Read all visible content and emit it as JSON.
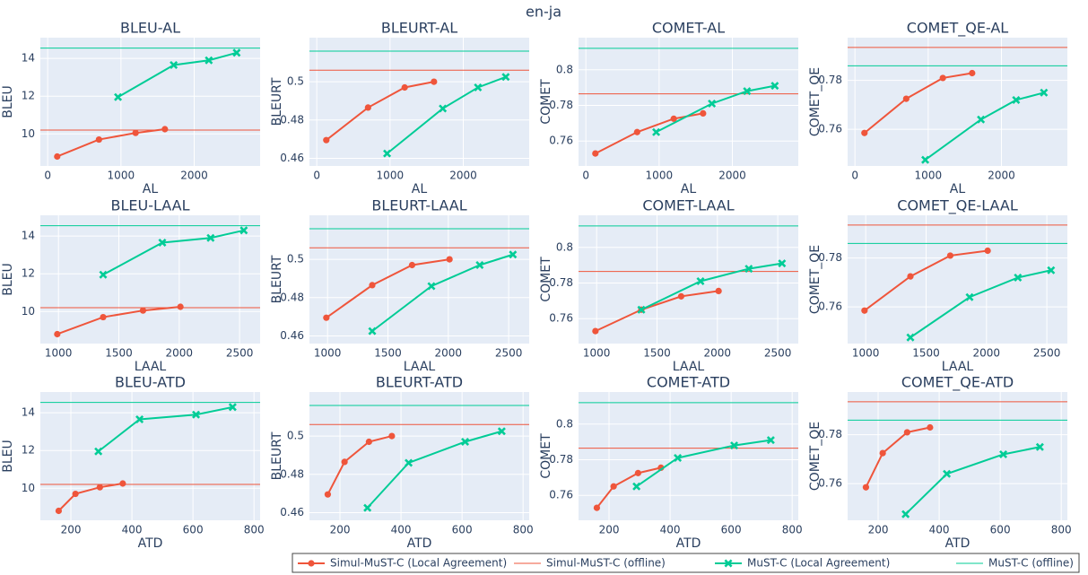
{
  "figure_title": "en-ja",
  "chart_data": [
    {
      "type": "line",
      "title": "BLEU-AL",
      "x_label": "AL",
      "y_label": "BLEU",
      "xlim": [
        -100,
        2900
      ],
      "xticks": [
        0,
        1000,
        2000
      ],
      "ylim": [
        8.3,
        15.1
      ],
      "yticks": [
        10,
        12,
        14
      ],
      "grid": true,
      "series": [
        {
          "name": "Simul-MuST-C (Local Agreement)",
          "color": "#ef553b",
          "marker": "circle",
          "x": [
            130,
            700,
            1200,
            1600
          ],
          "values": [
            8.8,
            9.7,
            10.05,
            10.25
          ]
        },
        {
          "name": "Simul-MuST-C (offline)",
          "color": "#ef553b",
          "value": 10.2
        },
        {
          "name": "MuST-C (Local Agreement)",
          "color": "#00cc96",
          "marker": "x",
          "x": [
            960,
            1720,
            2200,
            2580
          ],
          "values": [
            11.95,
            13.65,
            13.9,
            14.3
          ]
        },
        {
          "name": "MuST-C (offline)",
          "color": "#00cc96",
          "value": 14.55
        }
      ]
    },
    {
      "type": "line",
      "title": "BLEURT-AL",
      "x_label": "AL",
      "y_label": "BLEURT",
      "xlim": [
        -100,
        2900
      ],
      "xticks": [
        0,
        1000,
        2000
      ],
      "ylim": [
        0.456,
        0.523
      ],
      "yticks": [
        0.46,
        0.48,
        0.5
      ],
      "grid": true,
      "series": [
        {
          "name": "Simul-MuST-C (Local Agreement)",
          "color": "#ef553b",
          "marker": "circle",
          "x": [
            130,
            700,
            1200,
            1600
          ],
          "values": [
            0.4695,
            0.4865,
            0.497,
            0.5
          ]
        },
        {
          "name": "Simul-MuST-C (offline)",
          "color": "#ef553b",
          "value": 0.506
        },
        {
          "name": "MuST-C (Local Agreement)",
          "color": "#00cc96",
          "marker": "x",
          "x": [
            960,
            1720,
            2200,
            2580
          ],
          "values": [
            0.4625,
            0.486,
            0.497,
            0.5025
          ]
        },
        {
          "name": "MuST-C (offline)",
          "color": "#00cc96",
          "value": 0.516
        }
      ]
    },
    {
      "type": "line",
      "title": "COMET-AL",
      "x_label": "AL",
      "y_label": "COMET",
      "xlim": [
        -100,
        2900
      ],
      "xticks": [
        0,
        1000,
        2000
      ],
      "ylim": [
        0.746,
        0.818
      ],
      "yticks": [
        0.76,
        0.78,
        0.8
      ],
      "grid": true,
      "series": [
        {
          "name": "Simul-MuST-C (Local Agreement)",
          "color": "#ef553b",
          "marker": "circle",
          "x": [
            130,
            700,
            1200,
            1600
          ],
          "values": [
            0.753,
            0.765,
            0.7725,
            0.7755
          ]
        },
        {
          "name": "Simul-MuST-C (offline)",
          "color": "#ef553b",
          "value": 0.7865
        },
        {
          "name": "MuST-C (Local Agreement)",
          "color": "#00cc96",
          "marker": "x",
          "x": [
            960,
            1720,
            2200,
            2580
          ],
          "values": [
            0.765,
            0.781,
            0.788,
            0.791
          ]
        },
        {
          "name": "MuST-C (offline)",
          "color": "#00cc96",
          "value": 0.812
        }
      ]
    },
    {
      "type": "line",
      "title": "COMET_QE-AL",
      "x_label": "AL",
      "y_label": "COMET_QE",
      "xlim": [
        -100,
        2900
      ],
      "xticks": [
        0,
        1000,
        2000
      ],
      "ylim": [
        0.745,
        0.7975
      ],
      "yticks": [
        0.76,
        0.78
      ],
      "grid": true,
      "series": [
        {
          "name": "Simul-MuST-C (Local Agreement)",
          "color": "#ef553b",
          "marker": "circle",
          "x": [
            130,
            700,
            1200,
            1600
          ],
          "values": [
            0.7585,
            0.7725,
            0.781,
            0.783
          ]
        },
        {
          "name": "Simul-MuST-C (offline)",
          "color": "#ef553b",
          "value": 0.7935
        },
        {
          "name": "MuST-C (Local Agreement)",
          "color": "#00cc96",
          "marker": "x",
          "x": [
            960,
            1720,
            2200,
            2580
          ],
          "values": [
            0.7475,
            0.764,
            0.772,
            0.775
          ]
        },
        {
          "name": "MuST-C (offline)",
          "color": "#00cc96",
          "value": 0.786
        }
      ]
    },
    {
      "type": "line",
      "title": "BLEU-LAAL",
      "x_label": "LAAL",
      "y_label": "BLEU",
      "xlim": [
        850,
        2670
      ],
      "xticks": [
        1000,
        1500,
        2000,
        2500
      ],
      "ylim": [
        8.3,
        15.1
      ],
      "yticks": [
        10,
        12,
        14
      ],
      "grid": true,
      "series": [
        {
          "name": "Simul-MuST-C (Local Agreement)",
          "color": "#ef553b",
          "marker": "circle",
          "x": [
            990,
            1370,
            1700,
            2010
          ],
          "values": [
            8.8,
            9.7,
            10.05,
            10.25
          ]
        },
        {
          "name": "Simul-MuST-C (offline)",
          "color": "#ef553b",
          "value": 10.2
        },
        {
          "name": "MuST-C (Local Agreement)",
          "color": "#00cc96",
          "marker": "x",
          "x": [
            1370,
            1860,
            2260,
            2535
          ],
          "values": [
            11.95,
            13.65,
            13.9,
            14.3
          ]
        },
        {
          "name": "MuST-C (offline)",
          "color": "#00cc96",
          "value": 14.55
        }
      ]
    },
    {
      "type": "line",
      "title": "BLEURT-LAAL",
      "x_label": "LAAL",
      "y_label": "BLEURT",
      "xlim": [
        850,
        2670
      ],
      "xticks": [
        1000,
        1500,
        2000,
        2500
      ],
      "ylim": [
        0.456,
        0.523
      ],
      "yticks": [
        0.46,
        0.48,
        0.5
      ],
      "grid": true,
      "series": [
        {
          "name": "Simul-MuST-C (Local Agreement)",
          "color": "#ef553b",
          "marker": "circle",
          "x": [
            990,
            1370,
            1700,
            2010
          ],
          "values": [
            0.4695,
            0.4865,
            0.497,
            0.5
          ]
        },
        {
          "name": "Simul-MuST-C (offline)",
          "color": "#ef553b",
          "value": 0.506
        },
        {
          "name": "MuST-C (Local Agreement)",
          "color": "#00cc96",
          "marker": "x",
          "x": [
            1370,
            1860,
            2260,
            2535
          ],
          "values": [
            0.4625,
            0.486,
            0.497,
            0.5025
          ]
        },
        {
          "name": "MuST-C (offline)",
          "color": "#00cc96",
          "value": 0.516
        }
      ]
    },
    {
      "type": "line",
      "title": "COMET-LAAL",
      "x_label": "LAAL",
      "y_label": "COMET",
      "xlim": [
        850,
        2670
      ],
      "xticks": [
        1000,
        1500,
        2000,
        2500
      ],
      "ylim": [
        0.746,
        0.818
      ],
      "yticks": [
        0.76,
        0.78,
        0.8
      ],
      "grid": true,
      "series": [
        {
          "name": "Simul-MuST-C (Local Agreement)",
          "color": "#ef553b",
          "marker": "circle",
          "x": [
            990,
            1370,
            1700,
            2010
          ],
          "values": [
            0.753,
            0.765,
            0.7725,
            0.7755
          ]
        },
        {
          "name": "Simul-MuST-C (offline)",
          "color": "#ef553b",
          "value": 0.7865
        },
        {
          "name": "MuST-C (Local Agreement)",
          "color": "#00cc96",
          "marker": "x",
          "x": [
            1370,
            1860,
            2260,
            2535
          ],
          "values": [
            0.765,
            0.781,
            0.788,
            0.791
          ]
        },
        {
          "name": "MuST-C (offline)",
          "color": "#00cc96",
          "value": 0.812
        }
      ]
    },
    {
      "type": "line",
      "title": "COMET_QE-LAAL",
      "x_label": "LAAL",
      "y_label": "COMET_QE",
      "xlim": [
        850,
        2670
      ],
      "xticks": [
        1000,
        1500,
        2000,
        2500
      ],
      "ylim": [
        0.745,
        0.7975
      ],
      "yticks": [
        0.76,
        0.78
      ],
      "grid": true,
      "series": [
        {
          "name": "Simul-MuST-C (Local Agreement)",
          "color": "#ef553b",
          "marker": "circle",
          "x": [
            990,
            1370,
            1700,
            2010
          ],
          "values": [
            0.7585,
            0.7725,
            0.781,
            0.783
          ]
        },
        {
          "name": "Simul-MuST-C (offline)",
          "color": "#ef553b",
          "value": 0.7935
        },
        {
          "name": "MuST-C (Local Agreement)",
          "color": "#00cc96",
          "marker": "x",
          "x": [
            1370,
            1860,
            2260,
            2535
          ],
          "values": [
            0.7475,
            0.764,
            0.772,
            0.775
          ]
        },
        {
          "name": "MuST-C (offline)",
          "color": "#00cc96",
          "value": 0.786
        }
      ]
    },
    {
      "type": "line",
      "title": "BLEU-ATD",
      "x_label": "ATD",
      "y_label": "BLEU",
      "xlim": [
        100,
        820
      ],
      "xticks": [
        200,
        400,
        600,
        800
      ],
      "ylim": [
        8.3,
        15.1
      ],
      "yticks": [
        10,
        12,
        14
      ],
      "grid": true,
      "series": [
        {
          "name": "Simul-MuST-C (Local Agreement)",
          "color": "#ef553b",
          "marker": "circle",
          "x": [
            160,
            215,
            295,
            370
          ],
          "values": [
            8.8,
            9.7,
            10.05,
            10.25
          ]
        },
        {
          "name": "Simul-MuST-C (offline)",
          "color": "#ef553b",
          "value": 10.2
        },
        {
          "name": "MuST-C (Local Agreement)",
          "color": "#00cc96",
          "marker": "x",
          "x": [
            290,
            425,
            610,
            730
          ],
          "values": [
            11.95,
            13.65,
            13.9,
            14.3
          ]
        },
        {
          "name": "MuST-C (offline)",
          "color": "#00cc96",
          "value": 14.55
        }
      ]
    },
    {
      "type": "line",
      "title": "BLEURT-ATD",
      "x_label": "ATD",
      "y_label": "BLEURT",
      "xlim": [
        100,
        820
      ],
      "xticks": [
        200,
        400,
        600,
        800
      ],
      "ylim": [
        0.456,
        0.523
      ],
      "yticks": [
        0.46,
        0.48,
        0.5
      ],
      "grid": true,
      "series": [
        {
          "name": "Simul-MuST-C (Local Agreement)",
          "color": "#ef553b",
          "marker": "circle",
          "x": [
            160,
            215,
            295,
            370
          ],
          "values": [
            0.4695,
            0.4865,
            0.497,
            0.5
          ]
        },
        {
          "name": "Simul-MuST-C (offline)",
          "color": "#ef553b",
          "value": 0.506
        },
        {
          "name": "MuST-C (Local Agreement)",
          "color": "#00cc96",
          "marker": "x",
          "x": [
            290,
            425,
            610,
            730
          ],
          "values": [
            0.4625,
            0.486,
            0.497,
            0.5025
          ]
        },
        {
          "name": "MuST-C (offline)",
          "color": "#00cc96",
          "value": 0.516
        }
      ]
    },
    {
      "type": "line",
      "title": "COMET-ATD",
      "x_label": "ATD",
      "y_label": "COMET",
      "xlim": [
        100,
        820
      ],
      "xticks": [
        200,
        400,
        600,
        800
      ],
      "ylim": [
        0.746,
        0.818
      ],
      "yticks": [
        0.76,
        0.78,
        0.8
      ],
      "grid": true,
      "series": [
        {
          "name": "Simul-MuST-C (Local Agreement)",
          "color": "#ef553b",
          "marker": "circle",
          "x": [
            160,
            215,
            295,
            370
          ],
          "values": [
            0.753,
            0.765,
            0.7725,
            0.7755
          ]
        },
        {
          "name": "Simul-MuST-C (offline)",
          "color": "#ef553b",
          "value": 0.7865
        },
        {
          "name": "MuST-C (Local Agreement)",
          "color": "#00cc96",
          "marker": "x",
          "x": [
            290,
            425,
            610,
            730
          ],
          "values": [
            0.765,
            0.781,
            0.788,
            0.791
          ]
        },
        {
          "name": "MuST-C (offline)",
          "color": "#00cc96",
          "value": 0.812
        }
      ]
    },
    {
      "type": "line",
      "title": "COMET_QE-ATD",
      "x_label": "ATD",
      "y_label": "COMET_QE",
      "xlim": [
        100,
        820
      ],
      "xticks": [
        200,
        400,
        600,
        800
      ],
      "ylim": [
        0.745,
        0.7975
      ],
      "yticks": [
        0.76,
        0.78
      ],
      "grid": true,
      "series": [
        {
          "name": "Simul-MuST-C (Local Agreement)",
          "color": "#ef553b",
          "marker": "circle",
          "x": [
            160,
            215,
            295,
            370
          ],
          "values": [
            0.7585,
            0.7725,
            0.781,
            0.783
          ]
        },
        {
          "name": "Simul-MuST-C (offline)",
          "color": "#ef553b",
          "value": 0.7935
        },
        {
          "name": "MuST-C (Local Agreement)",
          "color": "#00cc96",
          "marker": "x",
          "x": [
            290,
            425,
            610,
            730
          ],
          "values": [
            0.7475,
            0.764,
            0.772,
            0.775
          ]
        },
        {
          "name": "MuST-C (offline)",
          "color": "#00cc96",
          "value": 0.786
        }
      ]
    }
  ]
}
